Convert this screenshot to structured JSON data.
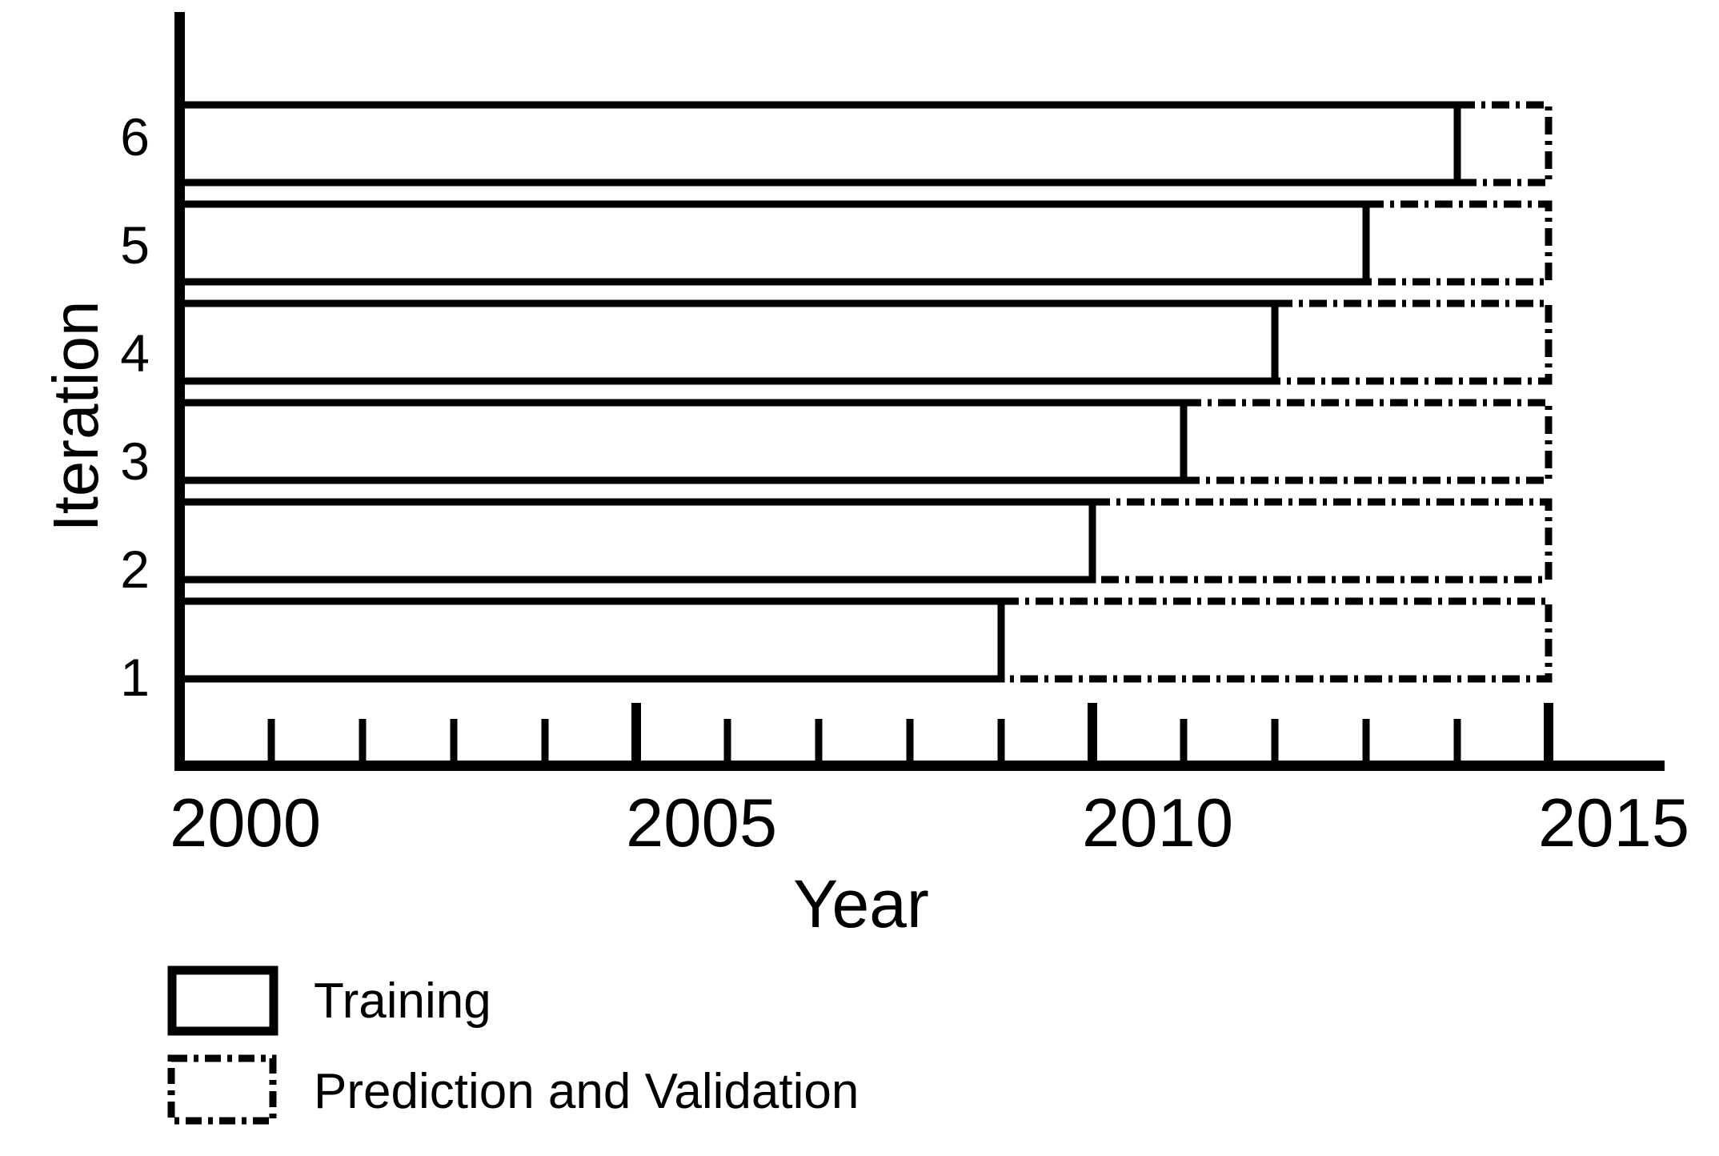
{
  "canvas": {
    "background": "#ffffff",
    "ink": "#000000"
  },
  "chart_data": {
    "type": "bar",
    "orientation": "horizontal",
    "title": "",
    "xlabel": "Year",
    "ylabel": "Iteration",
    "xlim": [
      2000,
      2015
    ],
    "x_major_ticks": [
      2000,
      2005,
      2010,
      2015
    ],
    "x_minor_ticks": [
      2001,
      2002,
      2003,
      2004,
      2006,
      2007,
      2008,
      2009,
      2011,
      2012,
      2013,
      2014
    ],
    "y_tick_labels": [
      "1",
      "2",
      "3",
      "4",
      "5",
      "6"
    ],
    "grid": false,
    "legend_position": "below-chart-left",
    "series": [
      {
        "name": "Training",
        "outline": "solid"
      },
      {
        "name": "Prediction and Validation",
        "outline": "dash-dot"
      }
    ],
    "rows": [
      {
        "iteration": 1,
        "training": [
          2000,
          2009
        ],
        "prediction_validation": [
          2009,
          2015
        ]
      },
      {
        "iteration": 2,
        "training": [
          2000,
          2010
        ],
        "prediction_validation": [
          2010,
          2015
        ]
      },
      {
        "iteration": 3,
        "training": [
          2000,
          2011
        ],
        "prediction_validation": [
          2011,
          2015
        ]
      },
      {
        "iteration": 4,
        "training": [
          2000,
          2012
        ],
        "prediction_validation": [
          2012,
          2015
        ]
      },
      {
        "iteration": 5,
        "training": [
          2000,
          2013
        ],
        "prediction_validation": [
          2013,
          2015
        ]
      },
      {
        "iteration": 6,
        "training": [
          2000,
          2014
        ],
        "prediction_validation": [
          2014,
          2015
        ]
      }
    ]
  },
  "legend": {
    "items": [
      {
        "label": "Training",
        "swatch": "solid-outline"
      },
      {
        "label": "Prediction and Validation",
        "swatch": "dash-dot-outline"
      }
    ]
  }
}
